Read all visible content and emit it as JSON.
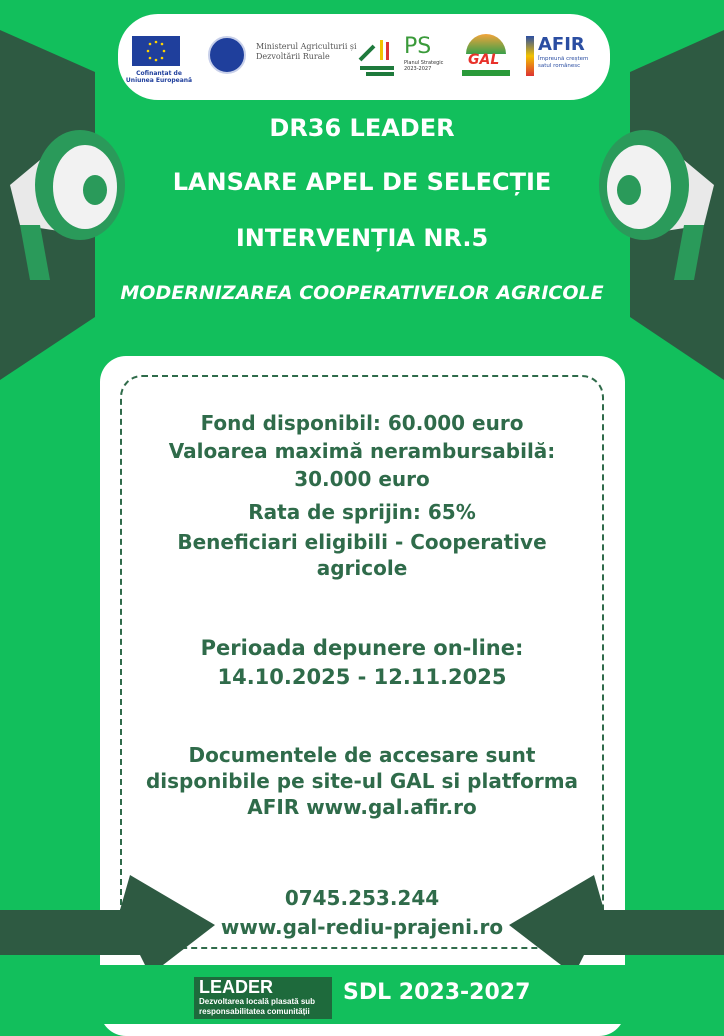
{
  "logos": {
    "eu_caption": "Cofinanțat de Uniunea Europeană",
    "ministry": "Ministerul Agriculturii și Dezvoltării Rurale",
    "ps_mark": "PS",
    "ps_caption": "Planul Strategic 2023-2027",
    "gal_mark": "GAL",
    "afir_mark": "AFIR",
    "afir_tagline": "Împreună creștem satul românesc"
  },
  "header": {
    "line1": "DR36 LEADER",
    "line2": "LANSARE APEL DE SELECȚIE",
    "line3": "INTERVENȚIA NR.5",
    "subtitle": "MODERNIZAREA COOPERATIVELOR AGRICOLE"
  },
  "details": {
    "fund": "Fond disponibil: 60.000 euro",
    "max_value_label": "Valoarea maximă nerambursabilă:",
    "max_value": "30.000 euro",
    "rate": "Rata de sprijin: 65%",
    "beneficiaries": "Beneficiari eligibili - Cooperative agricole"
  },
  "period": {
    "label": "Perioada depunere on-line:",
    "dates": "14.10.2025 - 12.11.2025"
  },
  "documents": "Documentele de accesare sunt disponibile pe site-ul GAL si platforma AFIR  www.gal.afir.ro",
  "contact": {
    "phone": "0745.253.244",
    "website": "www.gal-rediu-prajeni.ro"
  },
  "footer": {
    "leader_title": "LEADER",
    "leader_caption": "Dezvoltarea locală plasată sub responsabilitatea comunității",
    "sdl": "SDL 2023-2027"
  },
  "colors": {
    "background": "#12bf5c",
    "text": "#2f6b4a",
    "panel": "#2e5a42"
  }
}
